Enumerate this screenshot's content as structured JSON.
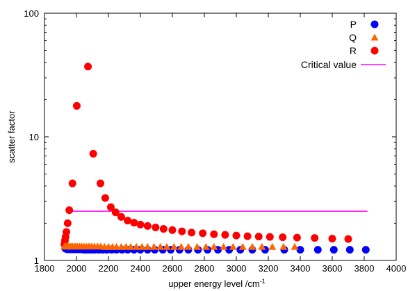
{
  "chart_data": {
    "type": "scatter",
    "title": "",
    "xlabel": "upper energy level /cm",
    "xlabel_superscript": "-1",
    "ylabel": "scatter factor",
    "xlim": [
      1800,
      4000
    ],
    "ylim": [
      1,
      100
    ],
    "y_scale": "log",
    "x_ticks": [
      "1800",
      "2000",
      "2200",
      "2400",
      "2600",
      "2800",
      "3000",
      "3200",
      "3400",
      "3600",
      "3800",
      "4000"
    ],
    "y_ticks": [
      "1",
      "10",
      "100"
    ],
    "grid": false,
    "legend_position": "top-right",
    "series": [
      {
        "name": "P",
        "marker": "circle",
        "color": "#0000ff",
        "points": [
          [
            1930,
            1.25
          ],
          [
            1935,
            1.24
          ],
          [
            1940,
            1.24
          ],
          [
            1945,
            1.23
          ],
          [
            1950,
            1.23
          ],
          [
            1955,
            1.23
          ],
          [
            1960,
            1.23
          ],
          [
            1970,
            1.23
          ],
          [
            1980,
            1.23
          ],
          [
            1990,
            1.23
          ],
          [
            2000,
            1.23
          ],
          [
            2010,
            1.23
          ],
          [
            2020,
            1.23
          ],
          [
            2030,
            1.23
          ],
          [
            2045,
            1.22
          ],
          [
            2060,
            1.22
          ],
          [
            2075,
            1.22
          ],
          [
            2095,
            1.22
          ],
          [
            2115,
            1.22
          ],
          [
            2140,
            1.22
          ],
          [
            2165,
            1.22
          ],
          [
            2190,
            1.22
          ],
          [
            2220,
            1.22
          ],
          [
            2250,
            1.22
          ],
          [
            2285,
            1.22
          ],
          [
            2320,
            1.22
          ],
          [
            2360,
            1.22
          ],
          [
            2400,
            1.22
          ],
          [
            2445,
            1.22
          ],
          [
            2490,
            1.22
          ],
          [
            2540,
            1.22
          ],
          [
            2590,
            1.22
          ],
          [
            2645,
            1.22
          ],
          [
            2700,
            1.22
          ],
          [
            2760,
            1.22
          ],
          [
            2820,
            1.22
          ],
          [
            2885,
            1.22
          ],
          [
            2955,
            1.22
          ],
          [
            3025,
            1.22
          ],
          [
            3100,
            1.22
          ],
          [
            3180,
            1.22
          ],
          [
            3300,
            1.22
          ],
          [
            3400,
            1.22
          ],
          [
            3510,
            1.22
          ],
          [
            3610,
            1.22
          ],
          [
            3710,
            1.22
          ],
          [
            3810,
            1.22
          ]
        ]
      },
      {
        "name": "Q",
        "marker": "triangle",
        "color": "#ff6600",
        "points": [
          [
            1925,
            1.3
          ],
          [
            1932,
            1.3
          ],
          [
            1940,
            1.3
          ],
          [
            1948,
            1.3
          ],
          [
            1956,
            1.3
          ],
          [
            1965,
            1.3
          ],
          [
            1975,
            1.3
          ],
          [
            1985,
            1.3
          ],
          [
            1995,
            1.3
          ],
          [
            2007,
            1.3
          ],
          [
            2020,
            1.3
          ],
          [
            2033,
            1.3
          ],
          [
            2047,
            1.3
          ],
          [
            2062,
            1.3
          ],
          [
            2078,
            1.3
          ],
          [
            2094,
            1.3
          ],
          [
            2112,
            1.3
          ],
          [
            2132,
            1.3
          ],
          [
            2152,
            1.3
          ],
          [
            2175,
            1.29
          ],
          [
            2200,
            1.29
          ],
          [
            2225,
            1.29
          ],
          [
            2250,
            1.29
          ],
          [
            2280,
            1.29
          ],
          [
            2310,
            1.29
          ],
          [
            2340,
            1.29
          ],
          [
            2375,
            1.29
          ],
          [
            2410,
            1.29
          ],
          [
            2445,
            1.29
          ],
          [
            2485,
            1.29
          ],
          [
            2525,
            1.29
          ],
          [
            2565,
            1.29
          ],
          [
            2610,
            1.29
          ],
          [
            2655,
            1.29
          ],
          [
            2700,
            1.29
          ],
          [
            2755,
            1.29
          ],
          [
            2810,
            1.29
          ],
          [
            2860,
            1.29
          ],
          [
            2920,
            1.29
          ],
          [
            2980,
            1.29
          ],
          [
            3040,
            1.29
          ],
          [
            3100,
            1.29
          ],
          [
            3160,
            1.29
          ],
          [
            3225,
            1.29
          ],
          [
            3295,
            1.29
          ],
          [
            3365,
            1.29
          ]
        ]
      },
      {
        "name": "R",
        "marker": "circle",
        "color": "#ff0000",
        "points": [
          [
            1925,
            1.35
          ],
          [
            1928,
            1.45
          ],
          [
            1932,
            1.55
          ],
          [
            1937,
            1.7
          ],
          [
            1945,
            2.0
          ],
          [
            1955,
            2.55
          ],
          [
            1975,
            4.2
          ],
          [
            2002,
            17.8
          ],
          [
            2072,
            37.0
          ],
          [
            2105,
            7.3
          ],
          [
            2150,
            4.2
          ],
          [
            2180,
            3.2
          ],
          [
            2215,
            2.7
          ],
          [
            2245,
            2.45
          ],
          [
            2280,
            2.25
          ],
          [
            2320,
            2.1
          ],
          [
            2360,
            2.02
          ],
          [
            2400,
            1.95
          ],
          [
            2445,
            1.9
          ],
          [
            2495,
            1.85
          ],
          [
            2545,
            1.8
          ],
          [
            2600,
            1.76
          ],
          [
            2660,
            1.72
          ],
          [
            2720,
            1.68
          ],
          [
            2790,
            1.66
          ],
          [
            2860,
            1.63
          ],
          [
            2930,
            1.61
          ],
          [
            3000,
            1.59
          ],
          [
            3070,
            1.57
          ],
          [
            3140,
            1.56
          ],
          [
            3210,
            1.55
          ],
          [
            3290,
            1.54
          ],
          [
            3380,
            1.53
          ],
          [
            3490,
            1.52
          ],
          [
            3600,
            1.5
          ],
          [
            3700,
            1.49
          ]
        ]
      },
      {
        "name": "Critical value",
        "type": "line",
        "color": "#ff00ff",
        "x": [
          1960,
          3820
        ],
        "y": [
          2.5,
          2.5
        ]
      }
    ]
  }
}
